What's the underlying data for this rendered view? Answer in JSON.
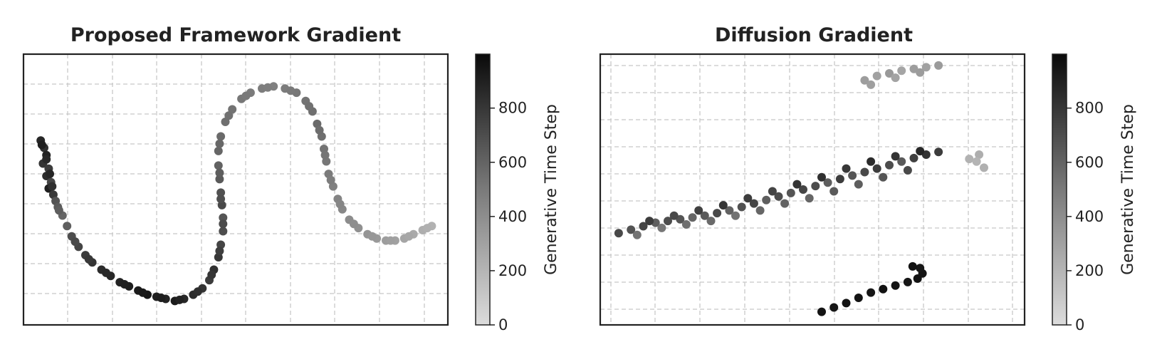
{
  "chart_data": [
    {
      "type": "scatter",
      "title": "Proposed Framework  Gradient",
      "xlabel": "",
      "ylabel": "",
      "grid": true,
      "color_scale": "gray_r",
      "points": [
        [
          -1.85,
          0.62,
          860
        ],
        [
          -1.82,
          0.55,
          820
        ],
        [
          -1.8,
          0.48,
          880
        ],
        [
          -1.83,
          0.4,
          800
        ],
        [
          -1.78,
          0.35,
          760
        ],
        [
          -1.8,
          0.28,
          840
        ],
        [
          -1.76,
          0.22,
          720
        ],
        [
          -1.78,
          0.16,
          900
        ],
        [
          -1.74,
          0.1,
          780
        ],
        [
          -1.72,
          0.04,
          650
        ],
        [
          -1.7,
          -0.02,
          620
        ],
        [
          -1.66,
          -0.1,
          560
        ],
        [
          -1.62,
          -0.2,
          600
        ],
        [
          -1.58,
          -0.3,
          680
        ],
        [
          -1.52,
          -0.4,
          720
        ],
        [
          -1.46,
          -0.48,
          760
        ],
        [
          -1.4,
          -0.55,
          800
        ],
        [
          -1.32,
          -0.62,
          840
        ],
        [
          -1.24,
          -0.68,
          860
        ],
        [
          -1.16,
          -0.74,
          880
        ],
        [
          -1.08,
          -0.78,
          900
        ],
        [
          -1.0,
          -0.82,
          920
        ],
        [
          -0.92,
          -0.86,
          940
        ],
        [
          -0.84,
          -0.88,
          900
        ],
        [
          -0.76,
          -0.9,
          880
        ],
        [
          -0.68,
          -0.92,
          920
        ],
        [
          -0.6,
          -0.9,
          860
        ],
        [
          -0.52,
          -0.86,
          840
        ],
        [
          -0.44,
          -0.8,
          800
        ],
        [
          -0.38,
          -0.72,
          760
        ],
        [
          -0.34,
          -0.62,
          820
        ],
        [
          -0.3,
          -0.5,
          780
        ],
        [
          -0.28,
          -0.38,
          720
        ],
        [
          -0.26,
          -0.25,
          680
        ],
        [
          -0.26,
          -0.12,
          640
        ],
        [
          -0.27,
          0.0,
          700
        ],
        [
          -0.28,
          0.12,
          660
        ],
        [
          -0.29,
          0.25,
          620
        ],
        [
          -0.3,
          0.38,
          580
        ],
        [
          -0.3,
          0.52,
          560
        ],
        [
          -0.28,
          0.66,
          540
        ],
        [
          -0.24,
          0.8,
          520
        ],
        [
          -0.18,
          0.92,
          500
        ],
        [
          -0.1,
          1.02,
          480
        ],
        [
          -0.02,
          1.08,
          460
        ],
        [
          0.08,
          1.12,
          450
        ],
        [
          0.18,
          1.14,
          440
        ],
        [
          0.28,
          1.12,
          460
        ],
        [
          0.38,
          1.08,
          480
        ],
        [
          0.46,
          1.0,
          500
        ],
        [
          0.52,
          0.9,
          520
        ],
        [
          0.56,
          0.78,
          540
        ],
        [
          0.6,
          0.66,
          520
        ],
        [
          0.62,
          0.54,
          500
        ],
        [
          0.64,
          0.42,
          480
        ],
        [
          0.66,
          0.3,
          460
        ],
        [
          0.7,
          0.18,
          440
        ],
        [
          0.74,
          0.06,
          420
        ],
        [
          0.78,
          -0.04,
          400
        ],
        [
          0.84,
          -0.14,
          380
        ],
        [
          0.92,
          -0.22,
          360
        ],
        [
          1.0,
          -0.28,
          340
        ],
        [
          1.08,
          -0.32,
          320
        ],
        [
          1.16,
          -0.34,
          300
        ],
        [
          1.24,
          -0.34,
          280
        ],
        [
          1.32,
          -0.32,
          260
        ],
        [
          1.4,
          -0.28,
          240
        ],
        [
          1.48,
          -0.24,
          220
        ],
        [
          1.56,
          -0.2,
          200
        ],
        [
          -1.84,
          0.58,
          900
        ],
        [
          -1.8,
          0.44,
          850
        ],
        [
          -1.77,
          0.3,
          870
        ],
        [
          -1.75,
          0.18,
          820
        ],
        [
          -1.69,
          -0.05,
          600
        ],
        [
          -1.55,
          -0.35,
          700
        ],
        [
          -1.43,
          -0.52,
          780
        ],
        [
          -1.28,
          -0.65,
          850
        ],
        [
          -1.12,
          -0.76,
          890
        ],
        [
          -0.96,
          -0.84,
          930
        ],
        [
          -0.8,
          -0.89,
          910
        ],
        [
          -0.64,
          -0.91,
          890
        ],
        [
          -0.48,
          -0.83,
          830
        ],
        [
          -0.36,
          -0.67,
          790
        ],
        [
          -0.29,
          -0.44,
          750
        ],
        [
          -0.26,
          -0.18,
          690
        ],
        [
          -0.28,
          0.06,
          670
        ],
        [
          -0.29,
          0.31,
          600
        ],
        [
          -0.29,
          0.59,
          550
        ],
        [
          -0.21,
          0.86,
          510
        ],
        [
          -0.06,
          1.05,
          470
        ],
        [
          0.13,
          1.13,
          445
        ],
        [
          0.33,
          1.1,
          470
        ],
        [
          0.49,
          0.95,
          510
        ],
        [
          0.58,
          0.72,
          530
        ],
        [
          0.63,
          0.48,
          490
        ],
        [
          0.68,
          0.24,
          450
        ],
        [
          0.76,
          0.01,
          410
        ],
        [
          0.88,
          -0.18,
          370
        ],
        [
          1.04,
          -0.3,
          330
        ],
        [
          1.2,
          -0.34,
          290
        ],
        [
          1.36,
          -0.3,
          250
        ],
        [
          1.52,
          -0.22,
          210
        ]
      ]
    },
    {
      "type": "scatter",
      "title": "Diffusion Gradient",
      "xlabel": "",
      "ylabel": "",
      "grid": true,
      "color_scale": "gray_r",
      "points": [
        [
          0.45,
          1.85,
          300
        ],
        [
          0.55,
          1.9,
          280
        ],
        [
          0.65,
          1.93,
          320
        ],
        [
          0.75,
          1.96,
          260
        ],
        [
          0.85,
          1.98,
          300
        ],
        [
          0.95,
          2.0,
          280
        ],
        [
          1.05,
          2.02,
          310
        ],
        [
          0.5,
          1.8,
          290
        ],
        [
          0.7,
          1.88,
          270
        ],
        [
          0.9,
          1.94,
          305
        ],
        [
          -1.55,
          0.1,
          700
        ],
        [
          -1.45,
          0.14,
          650
        ],
        [
          -1.35,
          0.18,
          720
        ],
        [
          -1.25,
          0.22,
          600
        ],
        [
          -1.15,
          0.24,
          680
        ],
        [
          -1.05,
          0.26,
          640
        ],
        [
          -0.95,
          0.28,
          560
        ],
        [
          -0.85,
          0.3,
          620
        ],
        [
          -0.75,
          0.33,
          700
        ],
        [
          -0.65,
          0.36,
          580
        ],
        [
          -0.55,
          0.4,
          660
        ],
        [
          -0.45,
          0.44,
          720
        ],
        [
          -0.35,
          0.48,
          600
        ],
        [
          -0.25,
          0.52,
          680
        ],
        [
          -0.15,
          0.56,
          640
        ],
        [
          -0.05,
          0.6,
          720
        ],
        [
          0.05,
          0.64,
          680
        ],
        [
          0.15,
          0.68,
          600
        ],
        [
          0.25,
          0.72,
          760
        ],
        [
          0.35,
          0.76,
          640
        ],
        [
          0.45,
          0.8,
          700
        ],
        [
          0.55,
          0.84,
          760
        ],
        [
          0.65,
          0.88,
          680
        ],
        [
          0.75,
          0.92,
          620
        ],
        [
          0.85,
          0.96,
          740
        ],
        [
          0.95,
          1.0,
          800
        ],
        [
          1.05,
          1.03,
          760
        ],
        [
          -1.4,
          0.08,
          500
        ],
        [
          -1.2,
          0.16,
          480
        ],
        [
          -1.0,
          0.2,
          520
        ],
        [
          -0.8,
          0.24,
          540
        ],
        [
          -0.6,
          0.3,
          500
        ],
        [
          -0.4,
          0.36,
          560
        ],
        [
          -0.2,
          0.44,
          580
        ],
        [
          0.0,
          0.5,
          560
        ],
        [
          0.2,
          0.58,
          620
        ],
        [
          0.4,
          0.66,
          600
        ],
        [
          0.6,
          0.74,
          640
        ],
        [
          0.8,
          0.82,
          700
        ],
        [
          -1.3,
          0.24,
          760
        ],
        [
          -1.1,
          0.3,
          700
        ],
        [
          -0.9,
          0.36,
          740
        ],
        [
          -0.7,
          0.42,
          800
        ],
        [
          -0.5,
          0.5,
          760
        ],
        [
          -0.3,
          0.58,
          720
        ],
        [
          -0.1,
          0.66,
          800
        ],
        [
          0.1,
          0.74,
          820
        ],
        [
          0.3,
          0.84,
          780
        ],
        [
          0.5,
          0.92,
          840
        ],
        [
          0.7,
          0.98,
          800
        ],
        [
          0.9,
          1.04,
          860
        ],
        [
          1.3,
          0.95,
          200
        ],
        [
          1.38,
          1.0,
          220
        ],
        [
          1.42,
          0.85,
          210
        ],
        [
          1.36,
          0.92,
          190
        ],
        [
          0.1,
          -0.8,
          950
        ],
        [
          0.2,
          -0.75,
          940
        ],
        [
          0.3,
          -0.7,
          960
        ],
        [
          0.4,
          -0.64,
          950
        ],
        [
          0.5,
          -0.58,
          940
        ],
        [
          0.6,
          -0.54,
          960
        ],
        [
          0.7,
          -0.5,
          950
        ],
        [
          0.8,
          -0.46,
          940
        ],
        [
          0.88,
          -0.42,
          960
        ],
        [
          0.92,
          -0.36,
          950
        ],
        [
          0.9,
          -0.3,
          940
        ],
        [
          0.84,
          -0.28,
          960
        ]
      ]
    }
  ],
  "colorbars": [
    {
      "label": "Generative Time Step",
      "ticks": [
        "0",
        "200",
        "400",
        "600",
        "800"
      ],
      "tick_values": [
        0,
        200,
        400,
        600,
        800
      ],
      "range": [
        0,
        999
      ]
    },
    {
      "label": "Generative Time Step",
      "ticks": [
        "0",
        "200",
        "400",
        "600",
        "800"
      ],
      "tick_values": [
        0,
        200,
        400,
        600,
        800
      ],
      "range": [
        0,
        999
      ]
    }
  ]
}
